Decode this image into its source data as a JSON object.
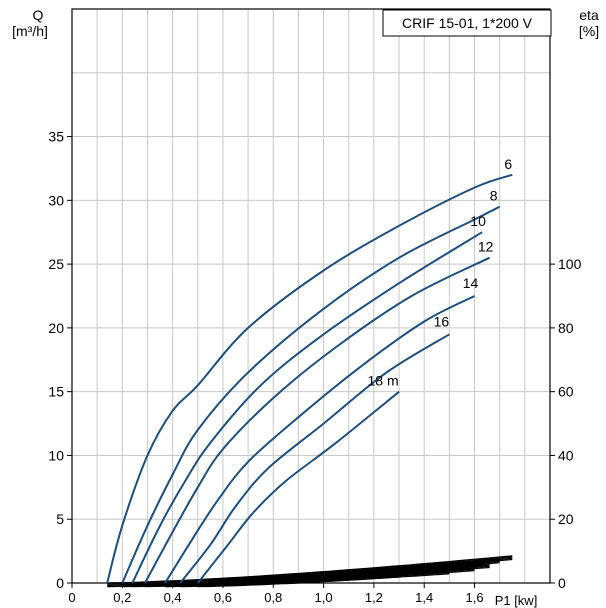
{
  "chart_data": {
    "type": "line",
    "title": "CRIF 15-01, 1*200 V",
    "ylabel_left": {
      "name": "Q",
      "unit": "[m³/h]"
    },
    "ylabel_right": {
      "name": "eta",
      "unit": "[%]"
    },
    "xlabel": "P1 [kw]",
    "xlim": [
      0,
      1.9
    ],
    "ylim_left": [
      0,
      45
    ],
    "ylim_right": [
      0,
      180
    ],
    "x_ticks": [
      0,
      0.2,
      0.4,
      0.6,
      0.8,
      1.0,
      1.2,
      1.4,
      1.6
    ],
    "x_tick_labels": [
      "0",
      "0,2",
      "0,4",
      "0,6",
      "0,8",
      "1,0",
      "1,2",
      "1,4",
      "1,6"
    ],
    "y_left_ticks": [
      0,
      5,
      10,
      15,
      20,
      25,
      30,
      35
    ],
    "y_left_tick_labels": [
      "0",
      "5",
      "10",
      "15",
      "20",
      "25",
      "30",
      "35"
    ],
    "y_right_ticks": [
      0,
      20,
      40,
      60,
      80,
      100
    ],
    "y_right_tick_labels": [
      "0",
      "20",
      "40",
      "60",
      "80",
      "100"
    ],
    "grid": true,
    "line_color": "#1f4e79",
    "series": [
      {
        "name": "6",
        "x": [
          0.14,
          0.2,
          0.3,
          0.4,
          0.5,
          0.7,
          1.0,
          1.3,
          1.6,
          1.75
        ],
        "y": [
          0,
          4.5,
          10,
          13.5,
          15.5,
          20,
          24.5,
          28,
          31,
          32
        ]
      },
      {
        "name": "8",
        "x": [
          0.2,
          0.3,
          0.4,
          0.5,
          0.7,
          1.0,
          1.3,
          1.6,
          1.7
        ],
        "y": [
          0,
          4.5,
          8.5,
          12,
          16.5,
          21.5,
          25.5,
          28.5,
          29.5
        ]
      },
      {
        "name": "10",
        "x": [
          0.24,
          0.35,
          0.45,
          0.55,
          0.75,
          1.0,
          1.3,
          1.63
        ],
        "y": [
          0,
          4.5,
          8,
          11,
          15.5,
          19.5,
          23.5,
          27.5
        ]
      },
      {
        "name": "12",
        "x": [
          0.29,
          0.4,
          0.5,
          0.6,
          0.8,
          1.05,
          1.35,
          1.66
        ],
        "y": [
          0,
          4,
          7.5,
          10.5,
          14.5,
          18.5,
          22.5,
          25.5
        ]
      },
      {
        "name": "14",
        "x": [
          0.37,
          0.48,
          0.58,
          0.7,
          0.9,
          1.15,
          1.4,
          1.6
        ],
        "y": [
          0,
          3.5,
          6.5,
          9.5,
          13,
          17,
          20.5,
          22.5
        ]
      },
      {
        "name": "16",
        "x": [
          0.43,
          0.55,
          0.65,
          0.78,
          1.0,
          1.25,
          1.5
        ],
        "y": [
          0,
          3,
          6,
          9,
          12.5,
          16.5,
          19.5
        ]
      },
      {
        "name": "18 m",
        "x": [
          0.5,
          0.62,
          0.72,
          0.85,
          1.05,
          1.3
        ],
        "y": [
          0,
          3,
          5.5,
          8,
          11,
          15
        ]
      }
    ],
    "efficiency_band": {
      "x_start": [
        0.14,
        0.2,
        0.24,
        0.29,
        0.37,
        0.43,
        0.5
      ],
      "x_end": [
        1.75,
        1.7,
        1.63,
        1.66,
        1.6,
        1.5,
        1.3
      ],
      "eta_end": [
        8.5,
        7.5,
        6.5,
        6,
        5,
        4,
        3
      ]
    }
  }
}
